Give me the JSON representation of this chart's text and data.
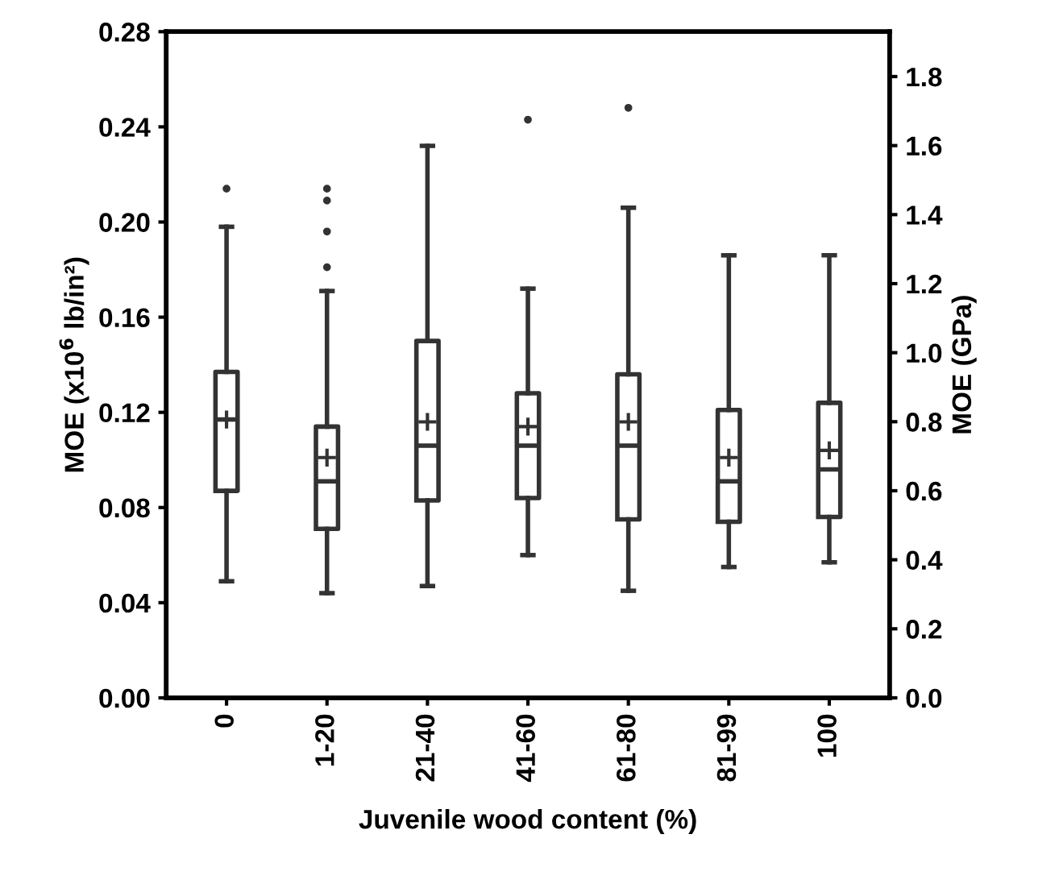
{
  "chart_data": {
    "type": "box",
    "xlabel": "Juvenile wood content (%)",
    "ylabel": "MOE (x10$^{6}$ lb/in²)",
    "y2label": "MOE (GPa)",
    "categories": [
      "0",
      "1-20",
      "21-40",
      "41-60",
      "61-80",
      "81-99",
      "100"
    ],
    "boxes": [
      {
        "low": 0.049,
        "q1": 0.087,
        "median": 0.117,
        "q3": 0.137,
        "high": 0.198,
        "mean": 0.117,
        "outliers": [
          0.214
        ]
      },
      {
        "low": 0.044,
        "q1": 0.071,
        "median": 0.091,
        "q3": 0.114,
        "high": 0.171,
        "mean": 0.101,
        "outliers": [
          0.181,
          0.196,
          0.209,
          0.214
        ]
      },
      {
        "low": 0.047,
        "q1": 0.083,
        "median": 0.106,
        "q3": 0.15,
        "high": 0.232,
        "mean": 0.116
      },
      {
        "low": 0.06,
        "q1": 0.084,
        "median": 0.106,
        "q3": 0.128,
        "high": 0.172,
        "mean": 0.114,
        "outliers": [
          0.243
        ]
      },
      {
        "low": 0.045,
        "q1": 0.075,
        "median": 0.106,
        "q3": 0.136,
        "high": 0.206,
        "mean": 0.116,
        "outliers": [
          0.248
        ]
      },
      {
        "low": 0.055,
        "q1": 0.074,
        "median": 0.091,
        "q3": 0.121,
        "high": 0.186,
        "mean": 0.101
      },
      {
        "low": 0.057,
        "q1": 0.076,
        "median": 0.096,
        "q3": 0.124,
        "high": 0.186,
        "mean": 0.104
      }
    ],
    "ylim": [
      0,
      0.28
    ],
    "yticks": [
      {
        "value": 0,
        "label": "0.00"
      },
      0.04,
      0.08,
      0.12,
      0.16,
      {
        "value": 0.2,
        "label": "0.20"
      },
      0.24,
      0.28
    ],
    "y2lim": [
      0,
      1.93
    ],
    "y2ticks": [
      {
        "value": 0,
        "label": "0.0"
      },
      0.2,
      0.4,
      0.6,
      0.8,
      {
        "value": 1,
        "label": "1.0"
      },
      1.2,
      1.4,
      1.6,
      1.8
    ],
    "grid": false
  }
}
